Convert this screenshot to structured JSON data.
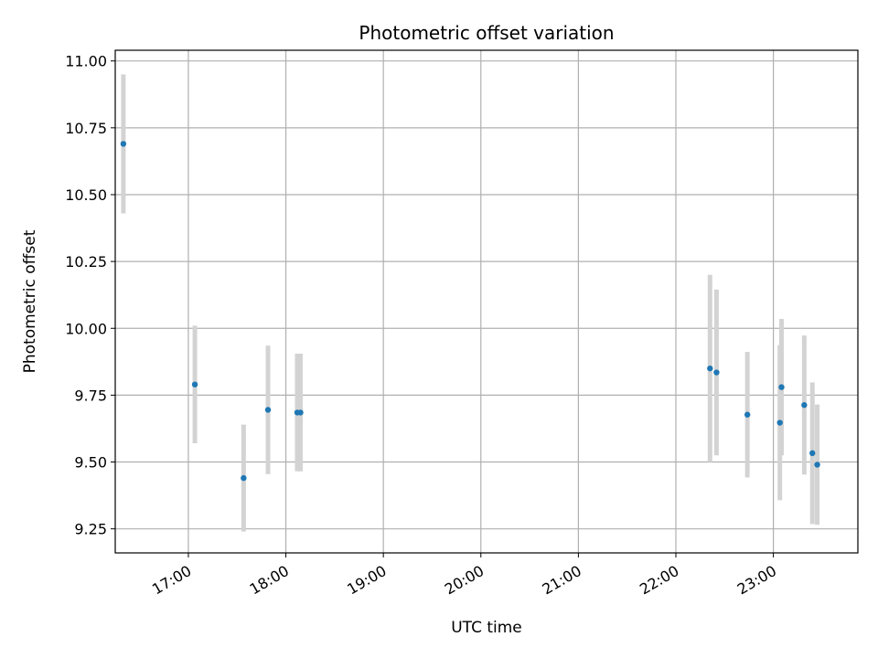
{
  "chart_data": {
    "type": "scatter",
    "title": "Photometric offset variation",
    "xlabel": "UTC time",
    "ylabel": "Photometric offset",
    "grid": true,
    "xlim": [
      "16:15",
      "23:52"
    ],
    "ylim": [
      9.16,
      11.04
    ],
    "xticks": [
      "17:00",
      "18:00",
      "19:00",
      "20:00",
      "21:00",
      "22:00",
      "23:00"
    ],
    "yticks": [
      "9.25",
      "9.50",
      "9.75",
      "10.00",
      "10.25",
      "10.50",
      "10.75",
      "11.00"
    ],
    "point_color": "#1f77b4",
    "errorbar_color": "#d3d3d3",
    "points": [
      {
        "x": "16:20",
        "y": 10.69,
        "err": 0.26
      },
      {
        "x": "17:04",
        "y": 9.79,
        "err": 0.22
      },
      {
        "x": "17:34",
        "y": 9.44,
        "err": 0.2
      },
      {
        "x": "17:49",
        "y": 9.695,
        "err": 0.24
      },
      {
        "x": "18:07",
        "y": 9.685,
        "err": 0.22
      },
      {
        "x": "18:09",
        "y": 9.685,
        "err": 0.22
      },
      {
        "x": "22:21",
        "y": 9.85,
        "err": 0.35
      },
      {
        "x": "22:25",
        "y": 9.835,
        "err": 0.31
      },
      {
        "x": "22:44",
        "y": 9.677,
        "err": 0.235
      },
      {
        "x": "23:04",
        "y": 9.647,
        "err": 0.29
      },
      {
        "x": "23:05",
        "y": 9.78,
        "err": 0.255
      },
      {
        "x": "23:19",
        "y": 9.713,
        "err": 0.26
      },
      {
        "x": "23:24",
        "y": 9.533,
        "err": 0.265
      },
      {
        "x": "23:27",
        "y": 9.49,
        "err": 0.225
      }
    ]
  }
}
